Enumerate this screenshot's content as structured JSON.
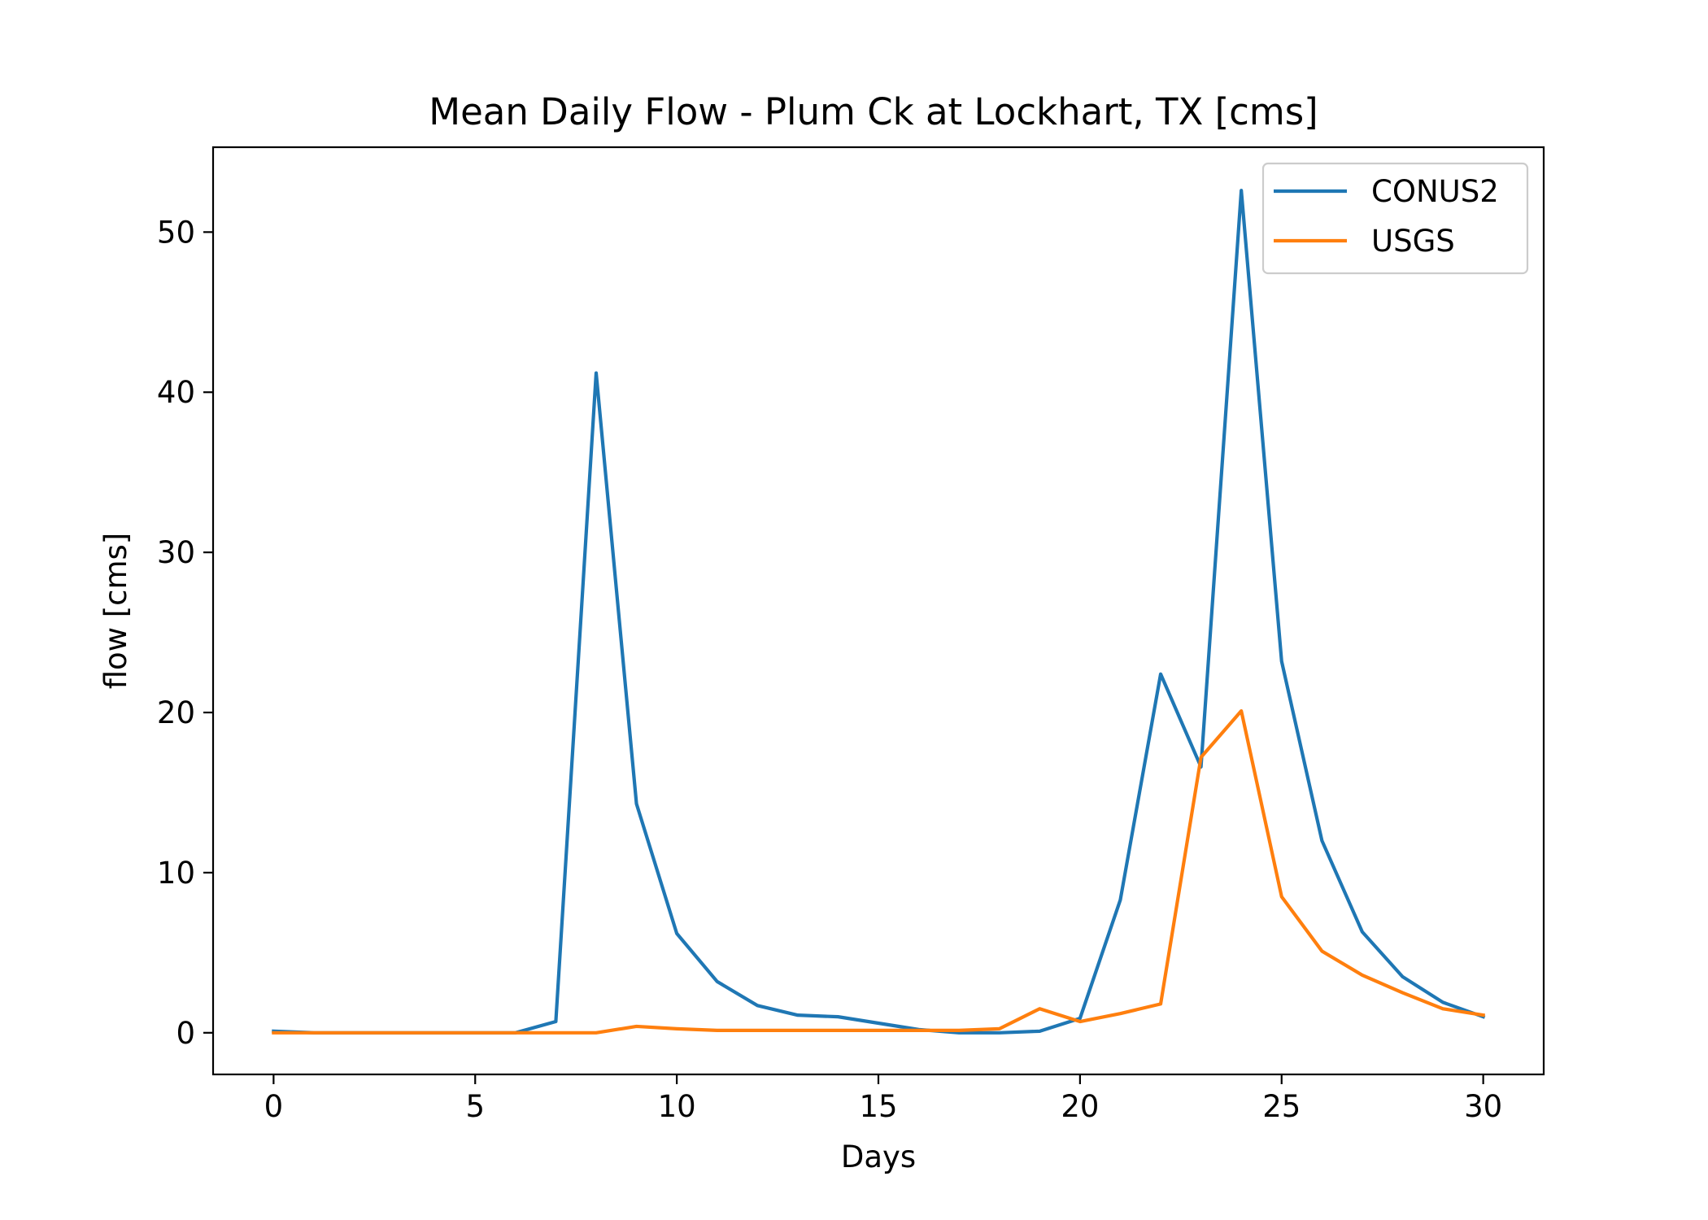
{
  "chart_data": {
    "type": "line",
    "title": "Mean Daily Flow - Plum Ck at Lockhart, TX [cms]",
    "xlabel": "Days",
    "ylabel": "flow [cms]",
    "xlim": [
      -1.5,
      31.5
    ],
    "ylim": [
      -2.6,
      55.3
    ],
    "xticks": [
      0,
      5,
      10,
      15,
      20,
      25,
      30
    ],
    "yticks": [
      0,
      10,
      20,
      30,
      40,
      50
    ],
    "grid": false,
    "legend_position": "top-right",
    "x": [
      0,
      1,
      2,
      3,
      4,
      5,
      6,
      7,
      8,
      9,
      10,
      11,
      12,
      13,
      14,
      15,
      16,
      17,
      18,
      19,
      20,
      21,
      22,
      23,
      24,
      25,
      26,
      27,
      28,
      29,
      30
    ],
    "series": [
      {
        "name": "CONUS2",
        "color": "#1f77b4",
        "values": [
          0.1,
          0.0,
          0.0,
          0.0,
          0.0,
          0.0,
          0.0,
          0.7,
          41.2,
          14.3,
          6.2,
          3.2,
          1.7,
          1.1,
          1.0,
          0.6,
          0.2,
          0.0,
          0.0,
          0.1,
          0.9,
          8.3,
          22.4,
          16.6,
          52.6,
          23.2,
          12.0,
          6.3,
          3.5,
          1.9,
          1.0
        ]
      },
      {
        "name": "USGS",
        "color": "#ff7f0e",
        "values": [
          0.0,
          0.0,
          0.0,
          0.0,
          0.0,
          0.0,
          0.0,
          0.0,
          0.0,
          0.4,
          0.25,
          0.15,
          0.15,
          0.15,
          0.15,
          0.15,
          0.15,
          0.15,
          0.25,
          1.5,
          0.7,
          1.2,
          1.8,
          17.2,
          20.1,
          8.5,
          5.1,
          3.6,
          2.5,
          1.5,
          1.1
        ]
      }
    ]
  }
}
